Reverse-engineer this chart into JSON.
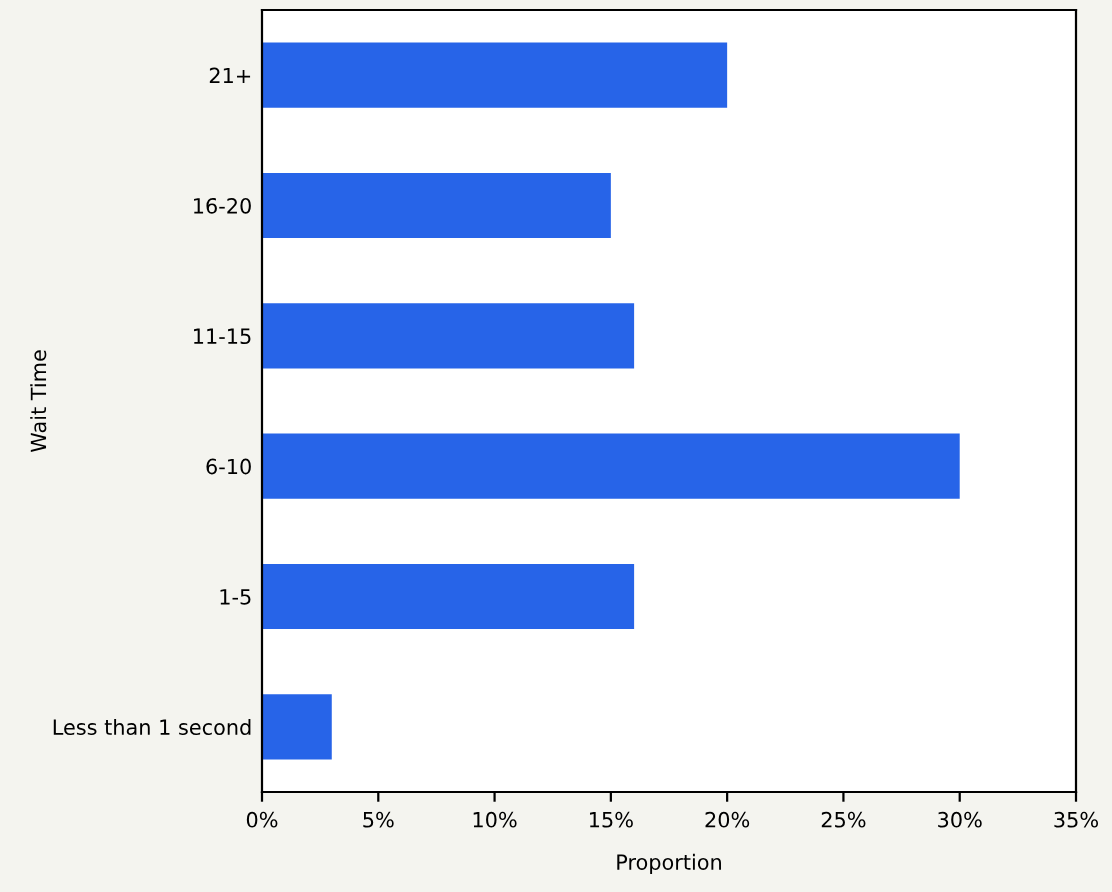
{
  "chart_data": {
    "type": "bar",
    "orientation": "horizontal",
    "categories": [
      "21+",
      "16-20",
      "11-15",
      "6-10",
      "1-5",
      "Less than 1 second"
    ],
    "values": [
      20,
      15,
      16,
      30,
      16,
      3
    ],
    "color": "#2764e8",
    "xlabel": "Proportion",
    "ylabel": "Wait Time",
    "xlim": [
      0,
      35
    ],
    "xticks": [
      {
        "value": 0,
        "label": "0%"
      },
      {
        "value": 5,
        "label": "5%"
      },
      {
        "value": 10,
        "label": "10%"
      },
      {
        "value": 15,
        "label": "15%"
      },
      {
        "value": 20,
        "label": "20%"
      },
      {
        "value": 25,
        "label": "25%"
      },
      {
        "value": 30,
        "label": "30%"
      },
      {
        "value": 35,
        "label": "35%"
      }
    ],
    "grid": false,
    "legend": false
  }
}
